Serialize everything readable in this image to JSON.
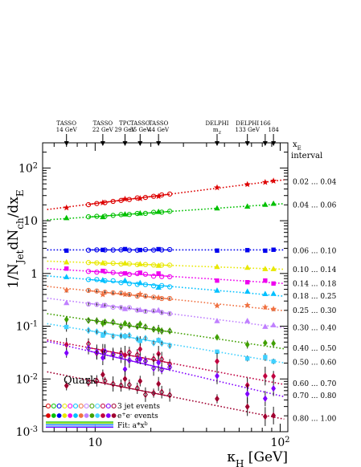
{
  "chart_data": {
    "type": "scatter",
    "title": "",
    "ylabel": "1/N_Jet dN_ch/dx_E",
    "xlabel": "κ_H [GeV]",
    "xscale": "log",
    "yscale": "log",
    "xlim": [
      5.2,
      110
    ],
    "ylim": [
      0.001,
      300
    ],
    "x_major_ticks": [
      {
        "v": 10,
        "label": "10"
      },
      {
        "v": 100,
        "label": "10^2"
      }
    ],
    "y_major_ticks": [
      {
        "v": 100,
        "label": "10^2"
      },
      {
        "v": 10,
        "label": "10"
      },
      {
        "v": 1,
        "label": "1"
      },
      {
        "v": 0.1,
        "label": "10^-1"
      },
      {
        "v": 0.01,
        "label": "10^-2"
      },
      {
        "v": 0.001,
        "label": "10^-3"
      }
    ],
    "legend_heading": "x_E interval",
    "experiments": [
      {
        "name": "TASSO",
        "energy": "14 GeV",
        "x": 7.0
      },
      {
        "name": "TASSO",
        "energy": "22 GeV",
        "x": 11.0
      },
      {
        "name": "TPC",
        "energy": "29 GeV",
        "x": 14.5
      },
      {
        "name": "TASSO",
        "energy": "35 GeV",
        "x": 17.5
      },
      {
        "name": "TASSO",
        "energy": "44 GeV",
        "x": 22.0
      },
      {
        "name": "DELPHI",
        "energy": "m_Z",
        "x": 45.6
      },
      {
        "name": "DELPHI",
        "energy": "133 GeV",
        "x": 66.5
      },
      {
        "name": "",
        "energy": "166",
        "x": 83.0
      },
      {
        "name": "",
        "energy": "184",
        "x": 92.0
      }
    ],
    "x_3jet": [
      9.2,
      10.2,
      11.3,
      12.5,
      13.8,
      15.3,
      16.9,
      18.7,
      20.7,
      22.9,
      25.3
    ],
    "x_ee": [
      7.0,
      11.0,
      14.5,
      17.5,
      22.0,
      45.6,
      66.5,
      83.0,
      92.0
    ],
    "fit_range": [
      5.5,
      105
    ],
    "series": [
      {
        "name": "0.02 ... 0.04",
        "color": "#dd0000",
        "a": 7.7,
        "b": 0.44,
        "marker_ee": "star"
      },
      {
        "name": "0.04 ... 0.06",
        "color": "#00c000",
        "a": 6.9,
        "b": 0.24,
        "marker_ee": "triangle"
      },
      {
        "name": "0.06 ... 0.10",
        "color": "#0000ee",
        "a": 2.8,
        "b": 0.0,
        "marker_ee": "square"
      },
      {
        "name": "0.10 ... 0.14",
        "color": "#e8e800",
        "a": 2.1,
        "b": -0.12,
        "marker_ee": "triangle"
      },
      {
        "name": "0.14 ... 0.18",
        "color": "#ee00ee",
        "a": 1.8,
        "b": -0.22,
        "marker_ee": "square"
      },
      {
        "name": "0.18 ... 0.25",
        "color": "#00c0ff",
        "a": 1.5,
        "b": -0.3,
        "marker_ee": "triangle"
      },
      {
        "name": "0.25 ... 0.30",
        "color": "#f07040",
        "a": 1.05,
        "b": -0.36,
        "marker_ee": "star"
      },
      {
        "name": "0.30 ... 0.40",
        "color": "#c080ff",
        "a": 0.72,
        "b": -0.44,
        "marker_ee": "triangle"
      },
      {
        "name": "0.40 ... 0.50",
        "color": "#40a000",
        "a": 0.42,
        "b": -0.52,
        "marker_ee": "diamond"
      },
      {
        "name": "0.50 ... 0.60",
        "color": "#40d0ff",
        "a": 0.3,
        "b": -0.58,
        "marker_ee": "square"
      },
      {
        "name": "0.60 ... 0.70",
        "color": "#c00040",
        "a": 0.17,
        "b": -0.66,
        "marker_ee": "diamond"
      },
      {
        "name": "0.70 ... 0.80",
        "color": "#8000ff",
        "a": 0.21,
        "b": -0.82,
        "marker_ee": "diamond"
      },
      {
        "name": "0.80 ... 1.00",
        "color": "#a00030",
        "a": 0.045,
        "b": -0.7,
        "marker_ee": "diamond"
      }
    ],
    "quark_label": "Quark",
    "legend": [
      {
        "label": "3 jet events"
      },
      {
        "label": "e+e- events"
      },
      {
        "label": "Fit: a*x^b"
      }
    ],
    "legend_colors": [
      "#dd0000",
      "#00c000",
      "#0000ee",
      "#e8e800",
      "#ee00ee",
      "#00c0ff",
      "#f07040",
      "#c080ff",
      "#40a000",
      "#40d0ff",
      "#c00040",
      "#8000ff",
      "#a00030"
    ]
  }
}
